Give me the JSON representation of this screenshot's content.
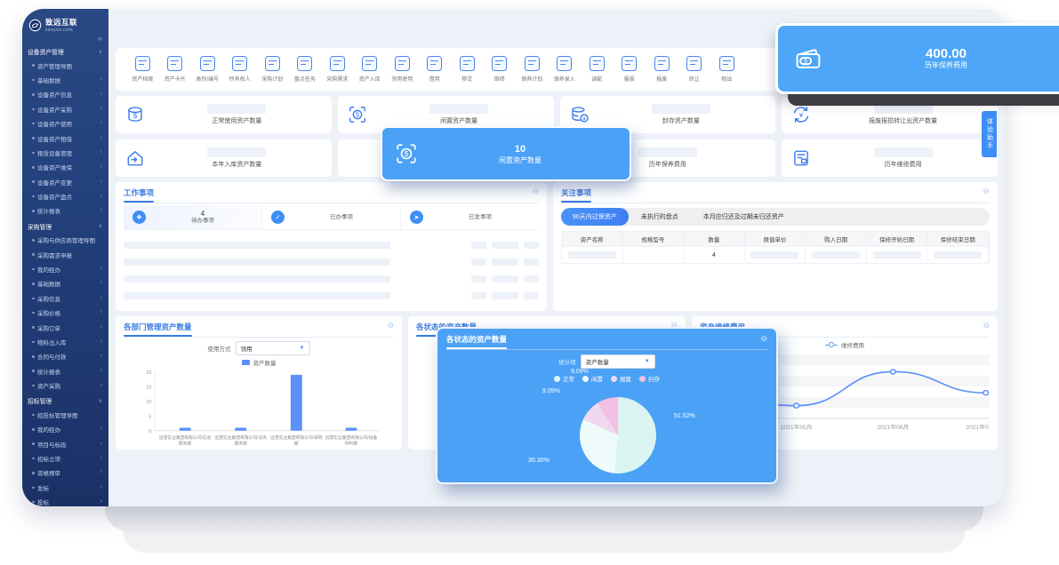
{
  "brand": {
    "name": "致远互联",
    "domain": "seeyon.com",
    "collapse_icon": "«"
  },
  "sidebar": {
    "rows": [
      {
        "cls": "nav-group",
        "label": "设备资产管理",
        "arrow": "∨"
      },
      {
        "cls": "nav-item",
        "label": "资产管理导图",
        "arrow": ""
      },
      {
        "cls": "nav-item",
        "label": "基础数据",
        "arrow": "›"
      },
      {
        "cls": "nav-item",
        "label": "设备资产信息",
        "arrow": "›"
      },
      {
        "cls": "nav-item",
        "label": "设备资产采购",
        "arrow": "›"
      },
      {
        "cls": "nav-item",
        "label": "设备资产使用",
        "arrow": "›"
      },
      {
        "cls": "nav-item",
        "label": "设备资产租借",
        "arrow": "›"
      },
      {
        "cls": "nav-item",
        "label": "租赁设备管理",
        "arrow": "›"
      },
      {
        "cls": "nav-item",
        "label": "设备资产维保",
        "arrow": "›"
      },
      {
        "cls": "nav-item",
        "label": "设备资产变更",
        "arrow": "›"
      },
      {
        "cls": "nav-item",
        "label": "设备资产盘点",
        "arrow": "›"
      },
      {
        "cls": "nav-item",
        "label": "统计报表",
        "arrow": "›"
      },
      {
        "cls": "nav-group",
        "label": "采购管理",
        "arrow": "∨"
      },
      {
        "cls": "nav-item",
        "label": "采购与供应商管理导图",
        "arrow": ""
      },
      {
        "cls": "nav-item",
        "label": "采购需求申报",
        "arrow": ""
      },
      {
        "cls": "nav-item",
        "label": "我的经办",
        "arrow": "›"
      },
      {
        "cls": "nav-item",
        "label": "基础数据",
        "arrow": "›"
      },
      {
        "cls": "nav-item",
        "label": "采购信息",
        "arrow": "›"
      },
      {
        "cls": "nav-item",
        "label": "采购价格",
        "arrow": "›"
      },
      {
        "cls": "nav-item",
        "label": "采购订单",
        "arrow": "›"
      },
      {
        "cls": "nav-item",
        "label": "物料出入库",
        "arrow": "›"
      },
      {
        "cls": "nav-item",
        "label": "合同与付款",
        "arrow": "›"
      },
      {
        "cls": "nav-item",
        "label": "统计报表",
        "arrow": "›"
      },
      {
        "cls": "nav-item",
        "label": "资产采购",
        "arrow": "›"
      },
      {
        "cls": "nav-group",
        "label": "招标管理",
        "arrow": "∨"
      },
      {
        "cls": "nav-item",
        "label": "招投标管理导图",
        "arrow": ""
      },
      {
        "cls": "nav-item",
        "label": "我的经办",
        "arrow": "›"
      },
      {
        "cls": "nav-item",
        "label": "项目与标段",
        "arrow": "›"
      },
      {
        "cls": "nav-item",
        "label": "招标立项",
        "arrow": "›"
      },
      {
        "cls": "nav-item",
        "label": "资格预审",
        "arrow": "›"
      },
      {
        "cls": "nav-item",
        "label": "发标",
        "arrow": "›"
      },
      {
        "cls": "nav-item",
        "label": "投标",
        "arrow": "›"
      },
      {
        "cls": "nav-item",
        "label": "开评标",
        "arrow": "›"
      }
    ]
  },
  "toolbar": {
    "items": [
      {
        "label": "资产档案",
        "icon": "archive-icon"
      },
      {
        "label": "资产卡片",
        "icon": "asset-card-icon"
      },
      {
        "label": "类别/编号",
        "icon": "category-icon"
      },
      {
        "label": "所有权人",
        "icon": "owner-icon"
      },
      {
        "label": "采购计划",
        "icon": "purchase-plan-icon"
      },
      {
        "label": "盘点任务",
        "icon": "inventory-task-icon"
      },
      {
        "label": "采购需求",
        "icon": "purchase-demand-icon"
      },
      {
        "label": "资产入库",
        "icon": "asset-inbound-icon"
      },
      {
        "label": "领用使用",
        "icon": "use-icon"
      },
      {
        "label": "借用",
        "icon": "borrow-icon"
      },
      {
        "label": "移交",
        "icon": "handover-icon"
      },
      {
        "label": "维修",
        "icon": "repair-icon"
      },
      {
        "label": "保养计划",
        "icon": "maintain-plan-icon"
      },
      {
        "label": "保养录入",
        "icon": "maintain-entry-icon"
      },
      {
        "label": "调配",
        "icon": "allocate-icon"
      },
      {
        "label": "报损",
        "icon": "damage-icon"
      },
      {
        "label": "报废",
        "icon": "scrap-icon"
      },
      {
        "label": "转让",
        "icon": "transfer-icon"
      },
      {
        "label": "租出",
        "icon": "rent-out-icon"
      }
    ]
  },
  "stats": {
    "cards": [
      {
        "label": "正常使用资产数量",
        "icon": "coin-stack-dollar-icon"
      },
      {
        "label": "闲置资产数量",
        "icon": "scan-dollar-icon"
      },
      {
        "label": "封存资产数量",
        "icon": "coin-stack-yen-icon"
      },
      {
        "label": "报废报损转让出资产数量",
        "icon": "refresh-yen-icon"
      },
      {
        "label": "本年入库资产数量",
        "icon": "home-inbound-icon"
      },
      {
        "label": "",
        "icon": ""
      },
      {
        "label": "历年保养费用",
        "icon": ""
      },
      {
        "label": "历年维修费用",
        "icon": "doc-calculator-icon"
      }
    ]
  },
  "overlay_idle": {
    "value": "10",
    "label": "闲置资产数量",
    "icon": "scan-dollar-icon"
  },
  "overlay_fee": {
    "value": "400.00",
    "label": "历年保养费用",
    "icon": "wallet-dollar-icon"
  },
  "work": {
    "title": "工作事项",
    "collapse_icon": "⊖",
    "tabs": [
      {
        "count": "4",
        "label": "待办事项"
      },
      {
        "count": "",
        "label": "已办事项"
      },
      {
        "count": "",
        "label": "已发事项"
      }
    ]
  },
  "attention": {
    "title": "关注事项",
    "collapse_icon": "⊖",
    "tabs": [
      {
        "label": "90天内过保资产",
        "active": true
      },
      {
        "label": "未执行的盘点"
      },
      {
        "label": "本月应归还及过期未归还资产"
      }
    ],
    "headers": [
      {
        "label": "资产名称"
      },
      {
        "label": "规格型号"
      },
      {
        "label": "数量"
      },
      {
        "label": "原值单价"
      },
      {
        "label": "购入日期"
      },
      {
        "label": "保修开始日期"
      },
      {
        "label": "保修结束日期"
      }
    ],
    "row": {
      "quantity": "4"
    }
  },
  "dept_chart": {
    "type": "bar",
    "title": "各部门管理资产数量",
    "collapse_icon": "⊖",
    "filter_label": "使用方式",
    "filter_value": "领用",
    "legend": "资产数量",
    "ymax": 20,
    "yticks_desc": [
      "20",
      "15",
      "10",
      "5",
      "0"
    ],
    "categories": [
      {
        "line1": "远望实业集团有限公司/信息",
        "line2": "服务部"
      },
      {
        "line1": "远望实业集团有限公司/法务",
        "line2": "服务部"
      },
      {
        "line1": "远望实业集团有限公司/采购",
        "line2": "部"
      },
      {
        "line1": "远望实业集团有限公司/设备",
        "line2": "材料部"
      }
    ],
    "values": [
      1,
      1,
      19,
      1
    ]
  },
  "status_chart": {
    "type": "pie",
    "title": "各状态的资产数量",
    "collapse_icon": "⊖",
    "filter_label": "统计项",
    "filter_value": "资产数量",
    "slices": [
      {
        "label": "正常",
        "pct": 51.52,
        "pct_label": "51.52%",
        "color": "#daf5f1"
      },
      {
        "label": "闲置",
        "pct": 30.3,
        "pct_label": "30.30%",
        "color": "#effbfb"
      },
      {
        "label": "报废",
        "pct": 9.09,
        "pct_label": "9.09%",
        "color": "#f0d9ef"
      },
      {
        "label": "封存",
        "pct": 9.09,
        "pct_label": "9.09%",
        "color": "#f3bfe4"
      }
    ]
  },
  "repair_chart": {
    "type": "line",
    "title": "资产维修费用",
    "collapse_icon": "⊖",
    "legend": "维修费用",
    "x": [
      "2021年04月",
      "2021年05月",
      "2021年06月",
      "2021年07月"
    ],
    "xticks_visible": [
      "2021年05月",
      "2021年06月",
      "2021年0"
    ],
    "values": [
      37,
      20,
      73,
      40
    ],
    "ylim": [
      0,
      100
    ],
    "line_color": "#5b8ff9"
  },
  "assistant": {
    "label": "体验助手",
    "icon": "robot-icon"
  }
}
